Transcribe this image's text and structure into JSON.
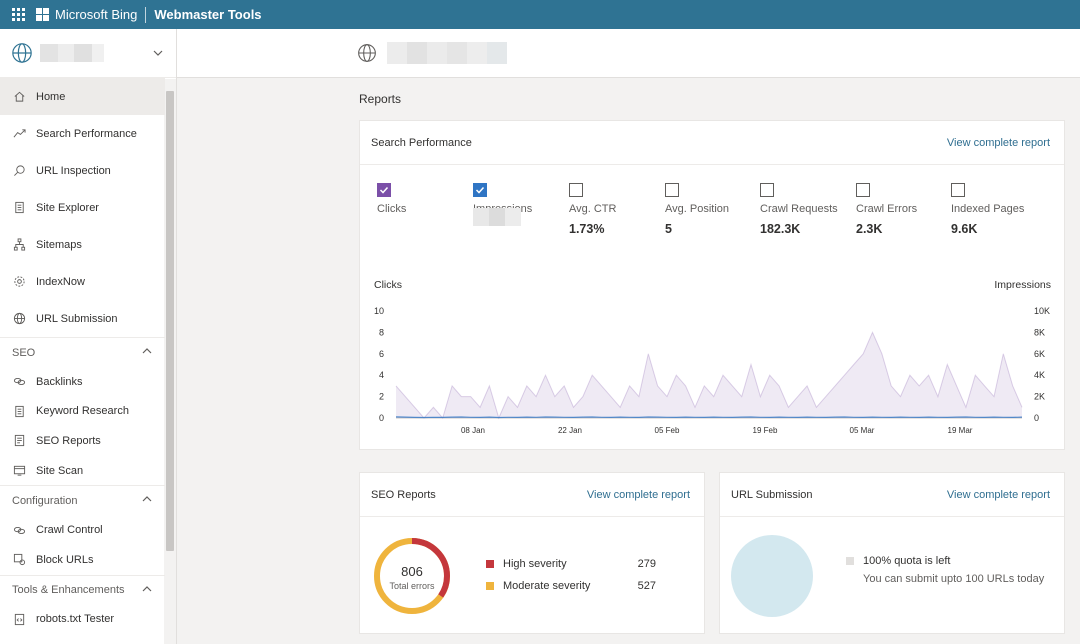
{
  "topbar": {
    "brand": "Microsoft Bing",
    "product": "Webmaster Tools"
  },
  "sidebar": {
    "items": [
      {
        "label": "Home",
        "icon": "home-icon",
        "active": true
      },
      {
        "label": "Search Performance",
        "icon": "trend-icon"
      },
      {
        "label": "URL Inspection",
        "icon": "search-icon"
      },
      {
        "label": "Site Explorer",
        "icon": "document-icon"
      },
      {
        "label": "Sitemaps",
        "icon": "sitemap-icon"
      },
      {
        "label": "IndexNow",
        "icon": "gear-icon"
      },
      {
        "label": "URL Submission",
        "icon": "globe-icon"
      }
    ],
    "sections": [
      {
        "title": "SEO",
        "items": [
          {
            "label": "Backlinks",
            "icon": "link-icon"
          },
          {
            "label": "Keyword Research",
            "icon": "document-icon"
          },
          {
            "label": "SEO Reports",
            "icon": "report-icon"
          },
          {
            "label": "Site Scan",
            "icon": "scan-icon"
          }
        ]
      },
      {
        "title": "Configuration",
        "items": [
          {
            "label": "Crawl Control",
            "icon": "crawl-icon"
          },
          {
            "label": "Block URLs",
            "icon": "block-icon"
          }
        ]
      },
      {
        "title": "Tools & Enhancements",
        "items": [
          {
            "label": "robots.txt Tester",
            "icon": "code-icon"
          }
        ]
      }
    ]
  },
  "main": {
    "title": "Reports",
    "search_performance": {
      "title": "Search Performance",
      "link": "View complete report",
      "metrics": [
        {
          "label": "Clicks",
          "value": "",
          "checked": true,
          "color": "#7b4fa8"
        },
        {
          "label": "Impressions",
          "value": "",
          "checked": true,
          "color": "#2f75c4"
        },
        {
          "label": "Avg. CTR",
          "value": "1.73%",
          "checked": false
        },
        {
          "label": "Avg. Position",
          "value": "5",
          "checked": false
        },
        {
          "label": "Crawl Requests",
          "value": "182.3K",
          "checked": false
        },
        {
          "label": "Crawl Errors",
          "value": "2.3K",
          "checked": false
        },
        {
          "label": "Indexed Pages",
          "value": "9.6K",
          "checked": false
        }
      ]
    },
    "seo_reports": {
      "title": "SEO Reports",
      "link": "View complete report",
      "total": "806",
      "total_label": "Total errors",
      "high_label": "High severity",
      "high_value": "279",
      "high_color": "#c4373c",
      "moderate_label": "Moderate severity",
      "moderate_value": "527",
      "moderate_color": "#efb43d"
    },
    "url_submission": {
      "title": "URL Submission",
      "link": "View complete report",
      "quota_text": "100% quota is left",
      "note": "You can submit upto 100 URLs today",
      "circle_color": "#d3e8ef"
    }
  },
  "chart_data": {
    "type": "line",
    "ylabel_left": "Clicks",
    "ylabel_right": "Impressions",
    "left_ticks": [
      "0",
      "2",
      "4",
      "6",
      "8",
      "10"
    ],
    "right_ticks": [
      "0",
      "2K",
      "4K",
      "6K",
      "8K",
      "10K"
    ],
    "ylim_left": [
      0,
      10
    ],
    "ylim_right": [
      0,
      10000
    ],
    "x_ticks": [
      "08 Jan",
      "22 Jan",
      "05 Feb",
      "19 Feb",
      "05 Mar",
      "19 Mar"
    ],
    "series": [
      {
        "name": "Clicks",
        "color": "#7b4fa8",
        "values": [
          3,
          2,
          1,
          0,
          1,
          0,
          3,
          2,
          2,
          1,
          3,
          0,
          2,
          1,
          3,
          2,
          4,
          2,
          3,
          1,
          2,
          4,
          3,
          2,
          1,
          3,
          2,
          6,
          3,
          2,
          4,
          3,
          1,
          3,
          2,
          4,
          3,
          2,
          5,
          2,
          4,
          3,
          1,
          2,
          3,
          1,
          2,
          3,
          4,
          5,
          6,
          8,
          6,
          3,
          2,
          4,
          3,
          4,
          2,
          5,
          3,
          1,
          4,
          3,
          2,
          6,
          3,
          1
        ]
      },
      {
        "name": "Impressions",
        "color": "#2f75c4",
        "values": [
          100,
          80,
          60,
          50,
          70,
          60,
          80,
          90,
          70,
          60,
          80,
          50,
          70,
          60,
          80,
          70,
          90,
          80,
          70,
          60,
          80,
          90,
          70,
          60,
          80,
          70,
          60,
          90,
          80,
          70,
          60,
          80,
          70,
          60,
          80,
          70,
          60,
          80,
          90,
          70,
          60,
          80,
          70,
          60,
          80,
          70,
          60,
          80,
          90,
          70,
          60,
          80,
          70,
          60,
          80,
          70,
          60,
          80,
          70,
          60,
          80,
          90,
          70,
          60,
          80,
          70,
          60,
          80
        ]
      }
    ]
  }
}
